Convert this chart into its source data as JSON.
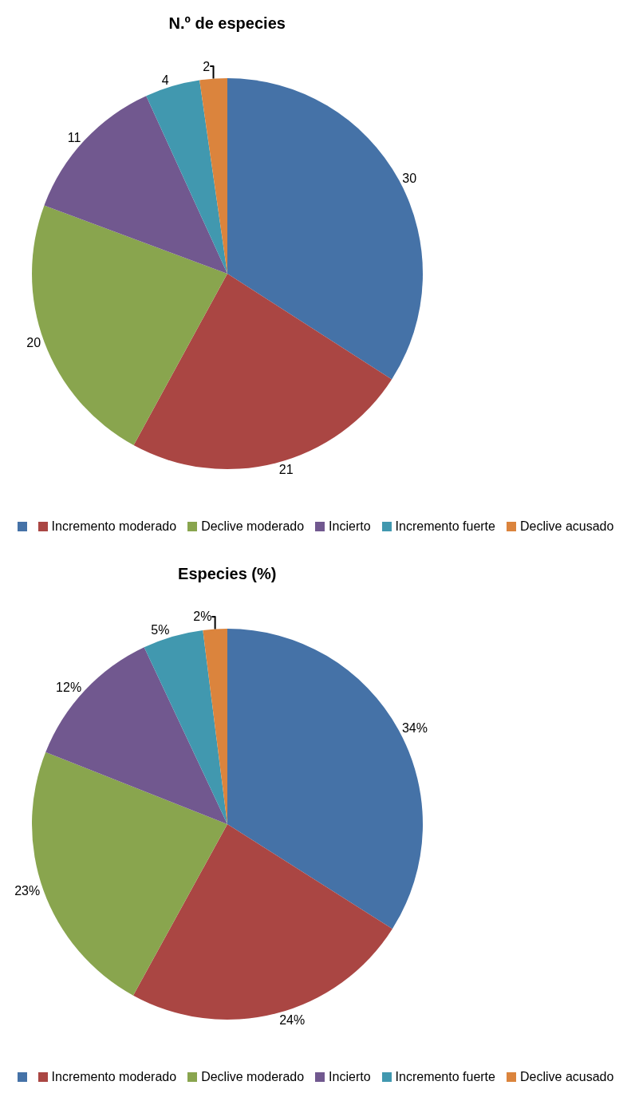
{
  "chart_data": [
    {
      "type": "pie",
      "title": "N.º de especies",
      "categories": [
        null,
        "Incremento moderado",
        "Declive moderado",
        "Incierto",
        "Incremento fuerte",
        "Declive acusado"
      ],
      "values": [
        30,
        21,
        20,
        11,
        4,
        2
      ],
      "colors": [
        "#4572a7",
        "#aa4643",
        "#89a54e",
        "#71588f",
        "#4198af",
        "#db843d"
      ],
      "data_labels": true,
      "legend": "bottom"
    },
    {
      "type": "pie",
      "title": "Especies (%)",
      "categories": [
        null,
        "Incremento moderado",
        "Declive moderado",
        "Incierto",
        "Incremento fuerte",
        "Declive acusado"
      ],
      "values": [
        34,
        24,
        23,
        12,
        5,
        2
      ],
      "value_labels": [
        "34%",
        "24%",
        "23%",
        "12%",
        "5%",
        "2%"
      ],
      "colors": [
        "#4572a7",
        "#aa4643",
        "#89a54e",
        "#71588f",
        "#4198af",
        "#db843d"
      ],
      "legend": "bottom"
    }
  ]
}
